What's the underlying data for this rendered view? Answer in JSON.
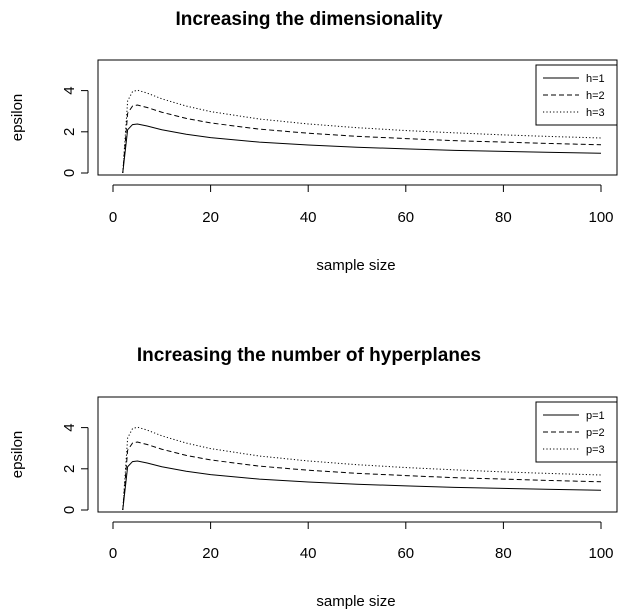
{
  "chart_data": [
    {
      "type": "line",
      "title": "Increasing the dimensionality",
      "xlabel": "sample size",
      "ylabel": "epsilon",
      "xlim": [
        0,
        100
      ],
      "ylim": [
        0,
        5
      ],
      "xticks": [
        0,
        20,
        40,
        60,
        80,
        100
      ],
      "yticks": [
        0,
        2,
        4
      ],
      "grid": false,
      "legend_position": "top-right",
      "x": [
        2,
        3,
        4,
        5,
        7,
        10,
        15,
        20,
        30,
        40,
        50,
        60,
        70,
        80,
        90,
        100
      ],
      "series": [
        {
          "name": "h=1",
          "style": "solid",
          "values": [
            0.0,
            2.1,
            2.35,
            2.38,
            2.28,
            2.1,
            1.88,
            1.72,
            1.5,
            1.36,
            1.25,
            1.17,
            1.1,
            1.05,
            1.0,
            0.96
          ]
        },
        {
          "name": "h=2",
          "style": "dashed",
          "values": [
            0.0,
            2.9,
            3.25,
            3.3,
            3.18,
            2.95,
            2.65,
            2.43,
            2.13,
            1.93,
            1.78,
            1.67,
            1.57,
            1.5,
            1.43,
            1.37
          ]
        },
        {
          "name": "h=3",
          "style": "dotted",
          "values": [
            0.0,
            3.5,
            3.95,
            4.02,
            3.88,
            3.6,
            3.25,
            2.98,
            2.62,
            2.38,
            2.2,
            2.06,
            1.95,
            1.85,
            1.77,
            1.7
          ]
        }
      ]
    },
    {
      "type": "line",
      "title": "Increasing the number of hyperplanes",
      "xlabel": "sample size",
      "ylabel": "epsilon",
      "xlim": [
        0,
        100
      ],
      "ylim": [
        0,
        5
      ],
      "xticks": [
        0,
        20,
        40,
        60,
        80,
        100
      ],
      "yticks": [
        0,
        2,
        4
      ],
      "grid": false,
      "legend_position": "top-right",
      "x": [
        2,
        3,
        4,
        5,
        7,
        10,
        15,
        20,
        30,
        40,
        50,
        60,
        70,
        80,
        90,
        100
      ],
      "series": [
        {
          "name": "p=1",
          "style": "solid",
          "values": [
            0.0,
            2.1,
            2.35,
            2.38,
            2.28,
            2.1,
            1.88,
            1.72,
            1.5,
            1.36,
            1.25,
            1.17,
            1.1,
            1.05,
            1.0,
            0.96
          ]
        },
        {
          "name": "p=2",
          "style": "dashed",
          "values": [
            0.0,
            2.9,
            3.25,
            3.3,
            3.18,
            2.95,
            2.65,
            2.43,
            2.13,
            1.93,
            1.78,
            1.67,
            1.57,
            1.5,
            1.43,
            1.37
          ]
        },
        {
          "name": "p=3",
          "style": "dotted",
          "values": [
            0.0,
            3.5,
            3.95,
            4.02,
            3.88,
            3.6,
            3.25,
            2.98,
            2.62,
            2.38,
            2.2,
            2.06,
            1.95,
            1.85,
            1.77,
            1.7
          ]
        }
      ]
    }
  ]
}
